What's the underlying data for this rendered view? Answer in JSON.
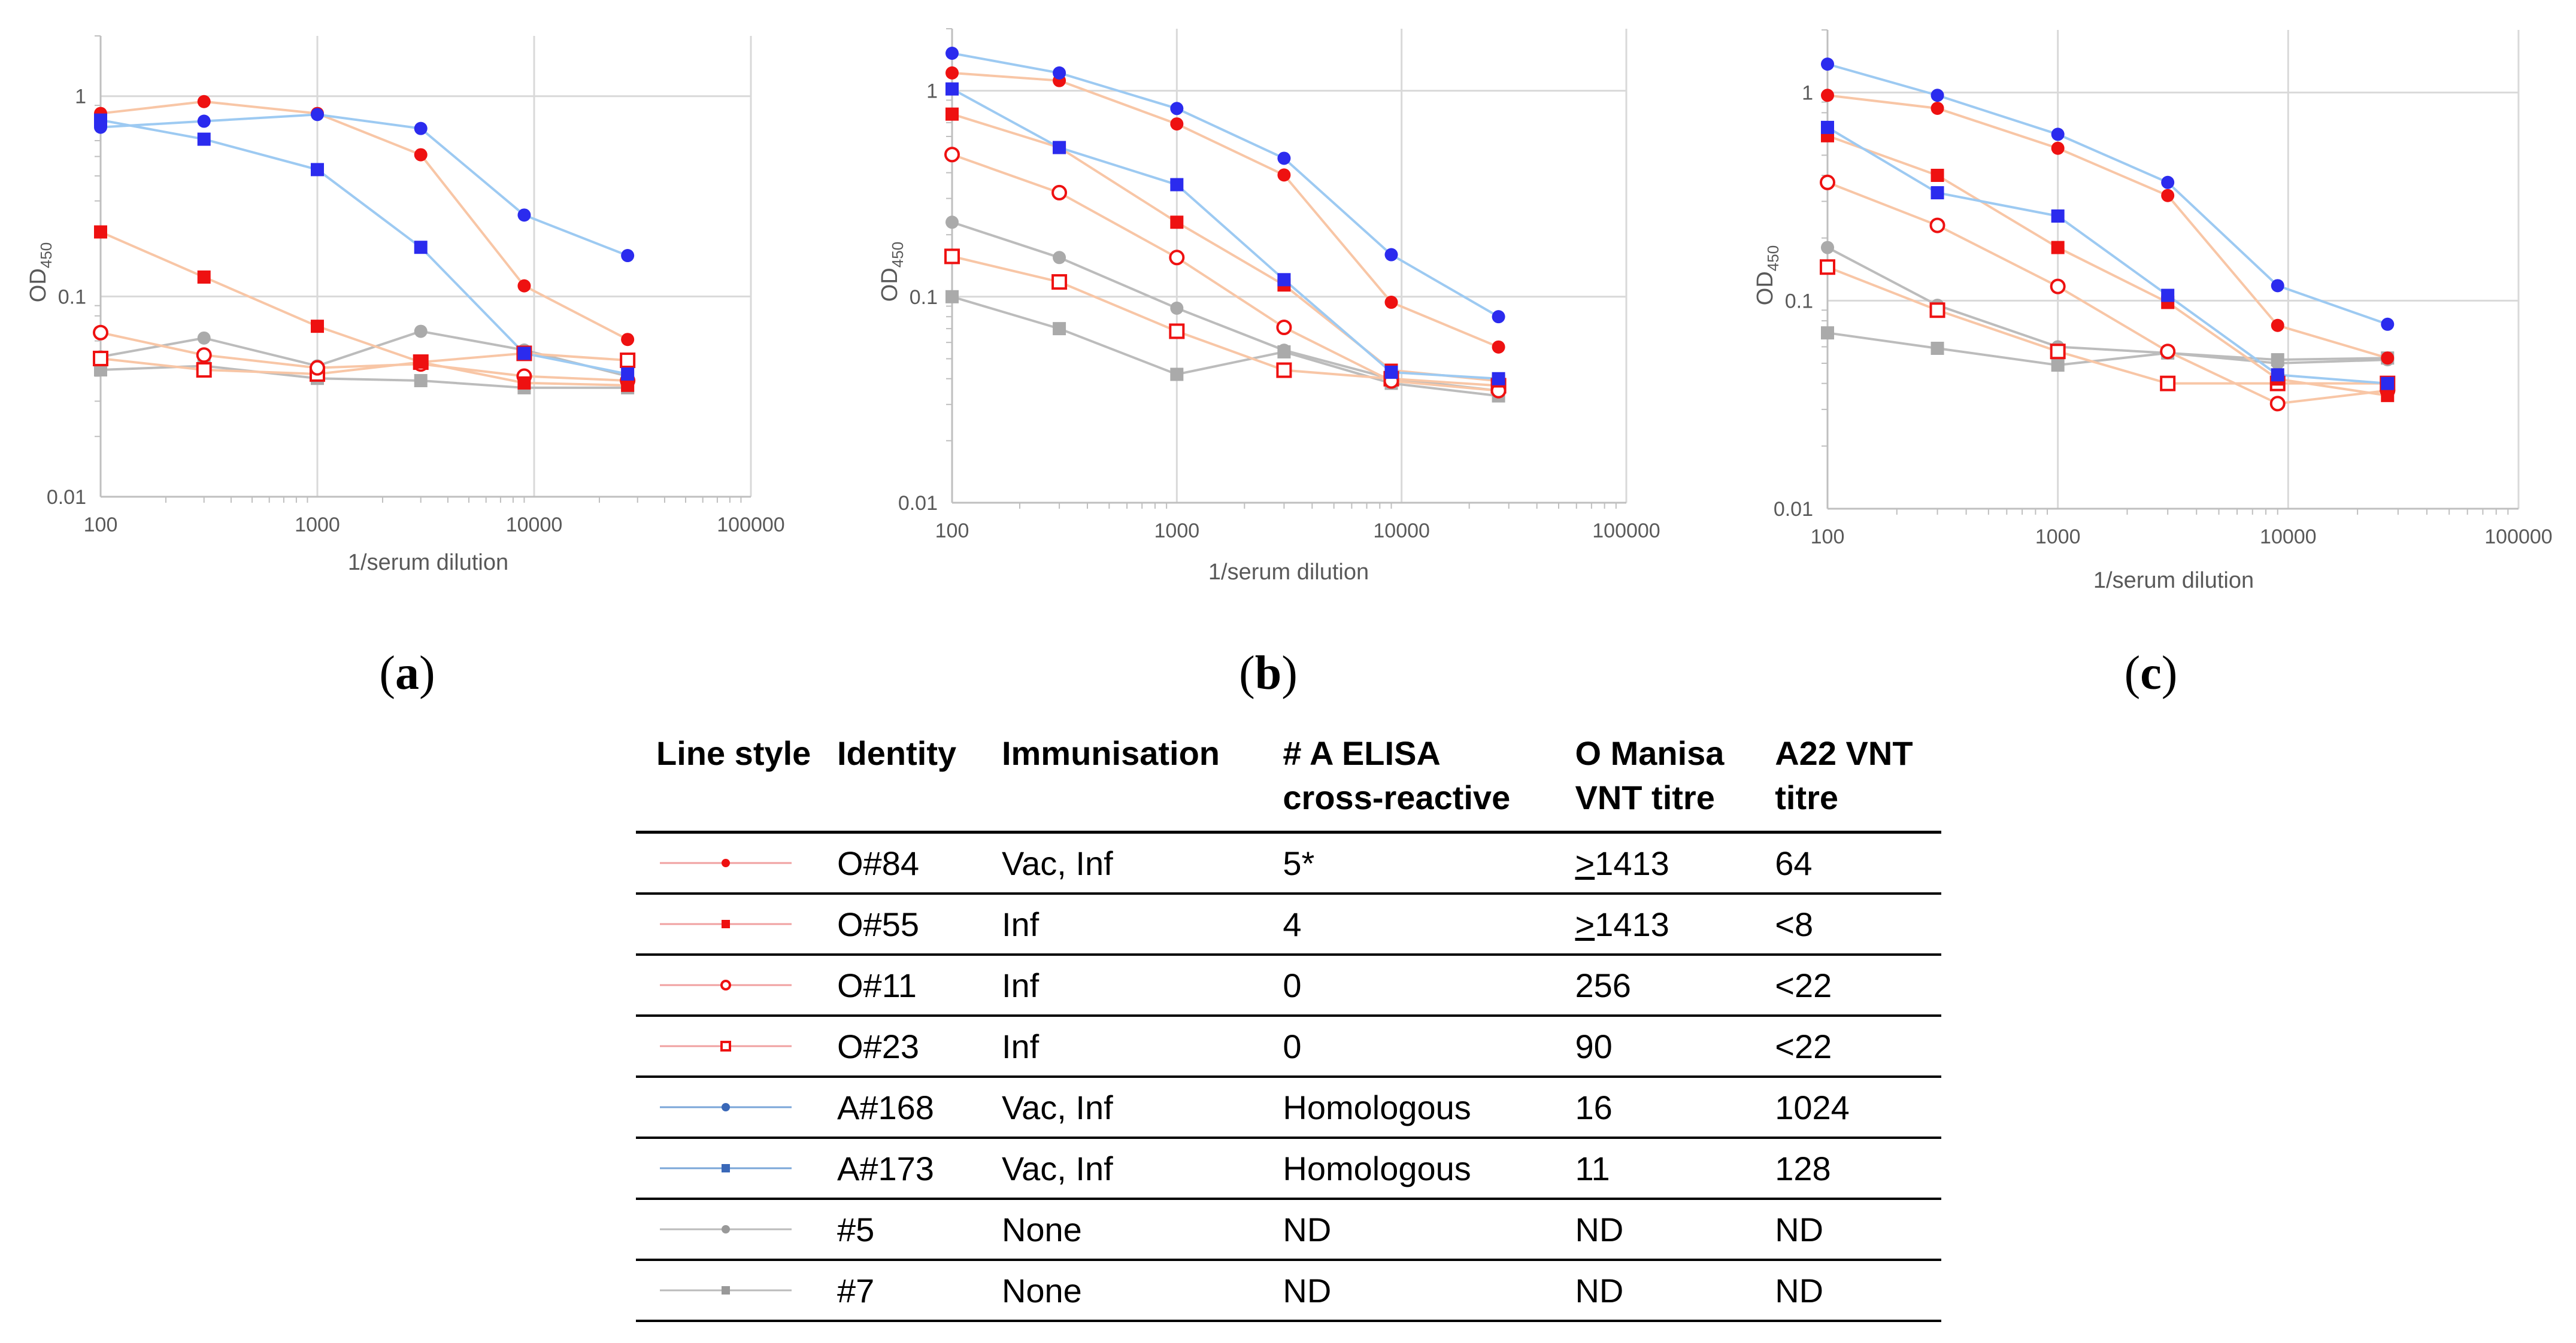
{
  "chart_data": [
    {
      "type": "line",
      "panel": "(a)",
      "xscale": "log",
      "yscale": "log",
      "xlim": [
        100,
        100000
      ],
      "ylim": [
        0.01,
        2
      ],
      "xticks": [
        "100",
        "1000",
        "10000",
        "100000"
      ],
      "yticks": [
        "1",
        "0.1",
        "0.01"
      ],
      "xlabel": "1/serum dilution",
      "ylabel": "OD",
      "ylabel_sub": "450",
      "x": [
        100,
        300,
        1000,
        3000,
        9000,
        27000
      ],
      "series": [
        {
          "name": "O#84",
          "values": [
            0.82,
            0.94,
            0.82,
            0.51,
            0.113,
            0.061
          ]
        },
        {
          "name": "O#55",
          "values": [
            0.21,
            0.125,
            0.071,
            0.047,
            0.037,
            0.036
          ]
        },
        {
          "name": "O#11",
          "values": [
            0.066,
            0.051,
            0.044,
            0.046,
            0.04,
            0.038
          ]
        },
        {
          "name": "O#23",
          "values": [
            0.049,
            0.043,
            0.041,
            0.047,
            0.052,
            0.048
          ]
        },
        {
          "name": "A#168",
          "values": [
            0.7,
            0.75,
            0.81,
            0.69,
            0.255,
            0.16
          ]
        },
        {
          "name": "A#173",
          "values": [
            0.76,
            0.61,
            0.43,
            0.176,
            0.052,
            0.041
          ]
        },
        {
          "name": "#5",
          "values": [
            0.05,
            0.062,
            0.045,
            0.067,
            0.054,
            0.04
          ]
        },
        {
          "name": "#7",
          "values": [
            0.043,
            0.045,
            0.039,
            0.038,
            0.035,
            0.035
          ]
        }
      ]
    },
    {
      "type": "line",
      "panel": "(b)",
      "xscale": "log",
      "yscale": "log",
      "xlim": [
        100,
        100000
      ],
      "ylim": [
        0.01,
        2
      ],
      "xticks": [
        "100",
        "1000",
        "10000",
        "100000"
      ],
      "yticks": [
        "1",
        "0.1",
        "0.01"
      ],
      "xlabel": "1/serum dilution",
      "ylabel": "OD",
      "ylabel_sub": "450",
      "x": [
        100,
        300,
        1000,
        3000,
        9000,
        27000
      ],
      "series": [
        {
          "name": "O#84",
          "values": [
            1.22,
            1.12,
            0.69,
            0.39,
            0.094,
            0.057
          ]
        },
        {
          "name": "O#55",
          "values": [
            0.77,
            0.53,
            0.23,
            0.114,
            0.044,
            0.039
          ]
        },
        {
          "name": "O#11",
          "values": [
            0.49,
            0.32,
            0.155,
            0.071,
            0.039,
            0.035
          ]
        },
        {
          "name": "O#23",
          "values": [
            0.157,
            0.118,
            0.068,
            0.044,
            0.04,
            0.037
          ]
        },
        {
          "name": "A#168",
          "values": [
            1.52,
            1.22,
            0.82,
            0.47,
            0.16,
            0.08
          ]
        },
        {
          "name": "A#173",
          "values": [
            1.02,
            0.53,
            0.35,
            0.121,
            0.043,
            0.04
          ]
        },
        {
          "name": "#5",
          "values": [
            0.23,
            0.155,
            0.088,
            0.055,
            0.04,
            0.035
          ]
        },
        {
          "name": "#7",
          "values": [
            0.1,
            0.07,
            0.042,
            0.054,
            0.038,
            0.033
          ]
        }
      ]
    },
    {
      "type": "line",
      "panel": "(c)",
      "xscale": "log",
      "yscale": "log",
      "xlim": [
        100,
        100000
      ],
      "ylim": [
        0.01,
        2
      ],
      "xticks": [
        "100",
        "1000",
        "10000",
        "100000"
      ],
      "yticks": [
        "1",
        "0.1",
        "0.01"
      ],
      "xlabel": "1/serum dilution",
      "ylabel": "OD",
      "ylabel_sub": "450",
      "x": [
        100,
        300,
        1000,
        3000,
        9000,
        27000
      ],
      "series": [
        {
          "name": "O#84",
          "values": [
            0.97,
            0.84,
            0.54,
            0.32,
            0.076,
            0.053
          ]
        },
        {
          "name": "O#55",
          "values": [
            0.62,
            0.4,
            0.18,
            0.098,
            0.042,
            0.035
          ]
        },
        {
          "name": "O#11",
          "values": [
            0.37,
            0.23,
            0.117,
            0.057,
            0.032,
            0.037
          ]
        },
        {
          "name": "O#23",
          "values": [
            0.145,
            0.09,
            0.057,
            0.04,
            0.04,
            0.04
          ]
        },
        {
          "name": "A#168",
          "values": [
            1.37,
            0.97,
            0.63,
            0.37,
            0.118,
            0.077
          ]
        },
        {
          "name": "A#173",
          "values": [
            0.68,
            0.33,
            0.255,
            0.106,
            0.044,
            0.04
          ]
        },
        {
          "name": "#5",
          "values": [
            0.18,
            0.095,
            0.06,
            0.056,
            0.05,
            0.052
          ]
        },
        {
          "name": "#7",
          "values": [
            0.07,
            0.059,
            0.049,
            0.056,
            0.052,
            0.053
          ]
        }
      ]
    }
  ],
  "series_styles": {
    "O#84": {
      "line": "#f8c6a6",
      "marker": "circle-filled",
      "color": "#ee1111"
    },
    "O#55": {
      "line": "#f8c6a6",
      "marker": "square-filled",
      "color": "#ee1111"
    },
    "O#11": {
      "line": "#f8c6a6",
      "marker": "circle-open",
      "color": "#ee1111"
    },
    "O#23": {
      "line": "#f8c6a6",
      "marker": "square-open",
      "color": "#ee1111"
    },
    "A#168": {
      "line": "#9dcaf2",
      "marker": "circle-filled",
      "color": "#2b2bee"
    },
    "A#173": {
      "line": "#9dcaf2",
      "marker": "square-filled",
      "color": "#2b2bee"
    },
    "#5": {
      "line": "#bcbcbc",
      "marker": "circle-filled",
      "color": "#aaaaaa"
    },
    "#7": {
      "line": "#bcbcbc",
      "marker": "square-filled",
      "color": "#aaaaaa"
    }
  },
  "panels": {
    "a": "a",
    "b": "b",
    "c": "c"
  },
  "table": {
    "headers": [
      "Line style",
      "Identity",
      "Immunisation",
      "# A ELISA",
      "cross-reactive",
      "O Manisa",
      "VNT titre",
      "A22 VNT",
      "titre"
    ],
    "rows": [
      {
        "identity": "O#84",
        "immunisation": "Vac, Inf",
        "elisa": "5*",
        "manisa_u": ">",
        "manisa": "1413",
        "a22": "64",
        "line_color": "#f0a0a0",
        "marker": "circle-filled",
        "marker_color": "#ee1111"
      },
      {
        "identity": "O#55",
        "immunisation": "Inf",
        "elisa": "4",
        "manisa_u": ">",
        "manisa": "1413",
        "a22": "<8",
        "line_color": "#f0a0a0",
        "marker": "square-filled",
        "marker_color": "#ee1111"
      },
      {
        "identity": "O#11",
        "immunisation": "Inf",
        "elisa": "0",
        "manisa_u": "",
        "manisa": "256",
        "a22": "<22",
        "line_color": "#f0a0a0",
        "marker": "circle-open",
        "marker_color": "#ee1111"
      },
      {
        "identity": "O#23",
        "immunisation": "Inf",
        "elisa": "0",
        "manisa_u": "",
        "manisa": "90",
        "a22": "<22",
        "line_color": "#f0a0a0",
        "marker": "square-open",
        "marker_color": "#ee1111"
      },
      {
        "identity": "A#168",
        "immunisation": "Vac, Inf",
        "elisa": "Homologous",
        "manisa_u": "",
        "manisa": "16",
        "a22": "1024",
        "line_color": "#7aa6d8",
        "marker": "circle-filled",
        "marker_color": "#3a68b8"
      },
      {
        "identity": "A#173",
        "immunisation": "Vac, Inf",
        "elisa": "Homologous",
        "manisa_u": "",
        "manisa": "11",
        "a22": "128",
        "line_color": "#7aa6d8",
        "marker": "square-filled",
        "marker_color": "#3a68b8"
      },
      {
        "identity": "#5",
        "immunisation": "None",
        "elisa": "ND",
        "manisa_u": "",
        "manisa": "ND",
        "a22": "ND",
        "line_color": "#bbbbbb",
        "marker": "circle-filled",
        "marker_color": "#999999"
      },
      {
        "identity": "#7",
        "immunisation": "None",
        "elisa": "ND",
        "manisa_u": "",
        "manisa": "ND",
        "a22": "ND",
        "line_color": "#bbbbbb",
        "marker": "square-filled",
        "marker_color": "#999999"
      }
    ]
  }
}
